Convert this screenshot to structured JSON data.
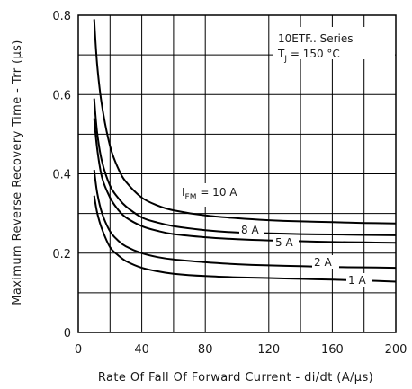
{
  "chart_data": {
    "type": "line",
    "title": "",
    "xlabel": "Rate Of Fall Of Forward Current - di/dt (A/µs)",
    "ylabel": "Maximum Reverse Recovery Time - Trr (µs)",
    "xlim": [
      0,
      200
    ],
    "ylim": [
      0,
      0.8
    ],
    "x_ticks": [
      "0",
      "40",
      "80",
      "120",
      "160",
      "200"
    ],
    "y_ticks": [
      "0",
      "0.2",
      "0.4",
      "0.6",
      "0.8"
    ],
    "grid": true,
    "info_box": {
      "line1": "10ETF.. Series",
      "line2_prefix": "T",
      "line2_sub": "J",
      "line2_suffix": " = 150 °C"
    },
    "series": [
      {
        "label": "10 A",
        "label_prefix": "I",
        "label_sub": "FM",
        "label_suffix": " = 10 A",
        "x": [
          10,
          12,
          15,
          20,
          25,
          30,
          40,
          50,
          60,
          80,
          100,
          120,
          140,
          160,
          180,
          200
        ],
        "y": [
          0.79,
          0.67,
          0.57,
          0.47,
          0.415,
          0.38,
          0.34,
          0.32,
          0.308,
          0.295,
          0.288,
          0.283,
          0.28,
          0.278,
          0.276,
          0.275
        ]
      },
      {
        "label": "8 A",
        "x": [
          10,
          12,
          15,
          20,
          25,
          30,
          40,
          50,
          60,
          80,
          100,
          120,
          140,
          160,
          180,
          200
        ],
        "y": [
          0.59,
          0.5,
          0.43,
          0.37,
          0.34,
          0.318,
          0.29,
          0.277,
          0.268,
          0.258,
          0.252,
          0.25,
          0.248,
          0.247,
          0.246,
          0.245
        ]
      },
      {
        "label": "5 A",
        "x": [
          10,
          12,
          15,
          20,
          25,
          30,
          40,
          50,
          60,
          80,
          100,
          120,
          140,
          160,
          180,
          200
        ],
        "y": [
          0.54,
          0.46,
          0.39,
          0.34,
          0.31,
          0.29,
          0.268,
          0.256,
          0.248,
          0.24,
          0.235,
          0.232,
          0.23,
          0.228,
          0.227,
          0.226
        ]
      },
      {
        "label": "2 A",
        "x": [
          10,
          12,
          15,
          20,
          25,
          30,
          40,
          50,
          60,
          80,
          100,
          120,
          140,
          160,
          180,
          200
        ],
        "y": [
          0.41,
          0.35,
          0.3,
          0.255,
          0.232,
          0.217,
          0.2,
          0.19,
          0.184,
          0.177,
          0.172,
          0.169,
          0.167,
          0.165,
          0.164,
          0.163
        ]
      },
      {
        "label": "1 A",
        "x": [
          10,
          12,
          15,
          20,
          25,
          30,
          40,
          50,
          60,
          80,
          100,
          120,
          140,
          160,
          180,
          200
        ],
        "y": [
          0.345,
          0.3,
          0.26,
          0.215,
          0.195,
          0.18,
          0.163,
          0.154,
          0.148,
          0.142,
          0.139,
          0.137,
          0.135,
          0.133,
          0.131,
          0.128
        ]
      }
    ]
  }
}
